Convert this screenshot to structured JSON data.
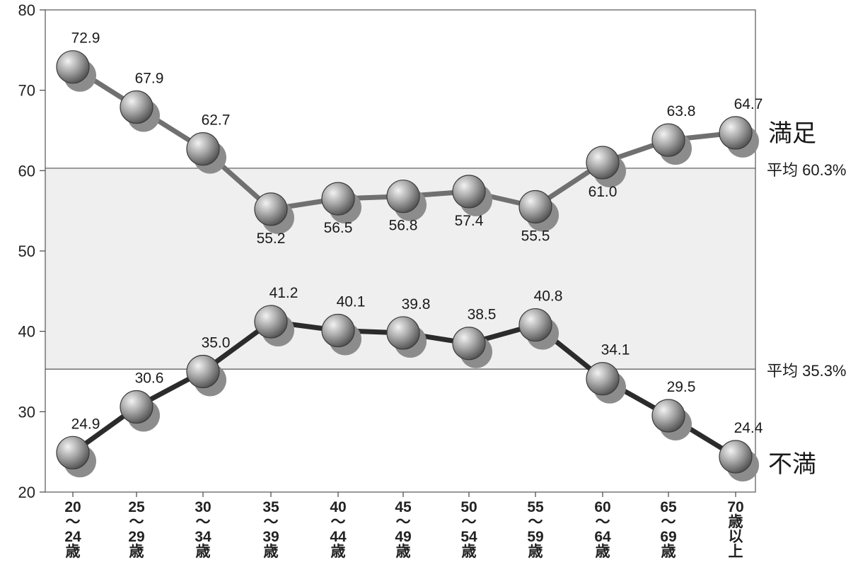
{
  "chart_data": {
    "type": "line",
    "title": "",
    "xlabel": "",
    "ylabel": "",
    "ylim": [
      20,
      80
    ],
    "yticks": [
      20,
      30,
      40,
      50,
      60,
      70,
      80
    ],
    "grid": false,
    "categories": [
      [
        "20",
        "〜",
        "24",
        "歳"
      ],
      [
        "25",
        "〜",
        "29",
        "歳"
      ],
      [
        "30",
        "〜",
        "34",
        "歳"
      ],
      [
        "35",
        "〜",
        "39",
        "歳"
      ],
      [
        "40",
        "〜",
        "44",
        "歳"
      ],
      [
        "45",
        "〜",
        "49",
        "歳"
      ],
      [
        "50",
        "〜",
        "54",
        "歳"
      ],
      [
        "55",
        "〜",
        "59",
        "歳"
      ],
      [
        "60",
        "〜",
        "64",
        "歳"
      ],
      [
        "65",
        "〜",
        "69",
        "歳"
      ],
      [
        "70",
        "歳",
        "以",
        "上"
      ]
    ],
    "series": [
      {
        "name": "満足",
        "values": [
          72.9,
          67.9,
          62.7,
          55.2,
          56.5,
          56.8,
          57.4,
          55.5,
          61.0,
          63.8,
          64.7
        ],
        "value_labels": [
          "72.9",
          "67.9",
          "62.7",
          "55.2",
          "56.5",
          "56.8",
          "57.4",
          "55.5",
          "61.0",
          "63.8",
          "64.7"
        ],
        "label_side": [
          "above",
          "above",
          "above",
          "below",
          "below",
          "below",
          "below",
          "below",
          "below",
          "above",
          "above"
        ],
        "line_color": "#707070",
        "average": 60.3,
        "average_label": "平均 60.3%"
      },
      {
        "name": "不満",
        "values": [
          24.9,
          30.6,
          35.0,
          41.2,
          40.1,
          39.8,
          38.5,
          40.8,
          34.1,
          29.5,
          24.4
        ],
        "value_labels": [
          "24.9",
          "30.6",
          "35.0",
          "41.2",
          "40.1",
          "39.8",
          "38.5",
          "40.8",
          "34.1",
          "29.5",
          "24.4"
        ],
        "label_side": [
          "above",
          "above",
          "above",
          "above",
          "above",
          "above",
          "above",
          "above",
          "above",
          "above",
          "above"
        ],
        "line_color": "#2b2b2b",
        "average": 35.3,
        "average_label": "平均 35.3%"
      }
    ],
    "colors": {
      "band_fill": "#efefef",
      "ball_light": "#f2f2f2",
      "ball_mid": "#a9a9a9",
      "ball_dark": "#4a4a4a",
      "shadow": "#8c8c8c"
    }
  }
}
